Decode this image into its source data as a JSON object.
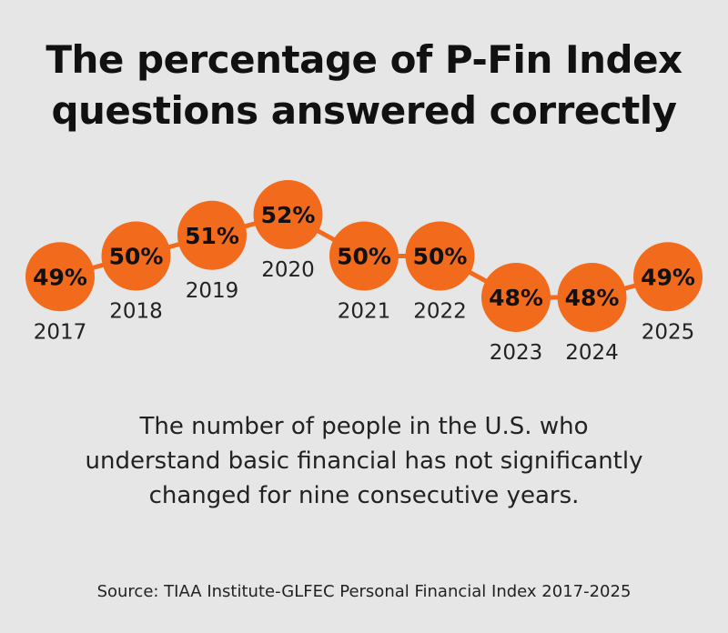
{
  "title_lines": [
    "The percentage of P-Fin Index",
    "questions answered correctly"
  ],
  "caption_lines": [
    "The number of people in the U.S. who",
    "understand basic financial has not significantly",
    "changed for nine consecutive years."
  ],
  "source": "Source: TIAA Institute-GLFEC Personal Financial Index 2017-2025",
  "colors": {
    "background": "#e6e6e6",
    "marker": "#f26b1d",
    "connector": "#f26b1d",
    "text": "#111111"
  },
  "chart_data": {
    "type": "line",
    "title": "The percentage of P-Fin Index questions answered correctly",
    "categories": [
      "2017",
      "2018",
      "2019",
      "2020",
      "2021",
      "2022",
      "2023",
      "2024",
      "2025"
    ],
    "values": [
      49,
      50,
      51,
      52,
      50,
      50,
      48,
      48,
      49
    ],
    "data_labels": [
      "49%",
      "50%",
      "51%",
      "52%",
      "50%",
      "50%",
      "48%",
      "48%",
      "49%"
    ],
    "unit": "%",
    "axes_visible": false,
    "grid": false
  }
}
